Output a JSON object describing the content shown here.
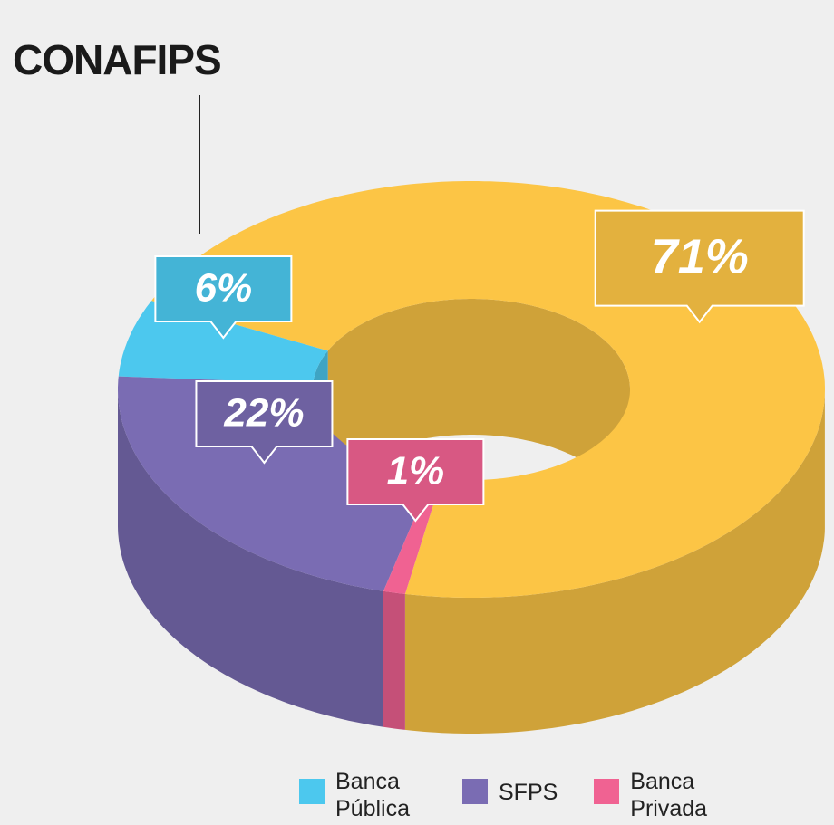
{
  "logo": "CONAFIPS",
  "chart_data": {
    "type": "pie",
    "donut": true,
    "categories": [
      null,
      "Banca Pública",
      "SFPS",
      "Banca Privada"
    ],
    "values": [
      71,
      6,
      22,
      1
    ],
    "value_labels": [
      "71%",
      "6%",
      "22%",
      "1%"
    ],
    "colors": [
      "#fcc545",
      "#4cc8ee",
      "#7a6cb3",
      "#f06292"
    ]
  }
}
